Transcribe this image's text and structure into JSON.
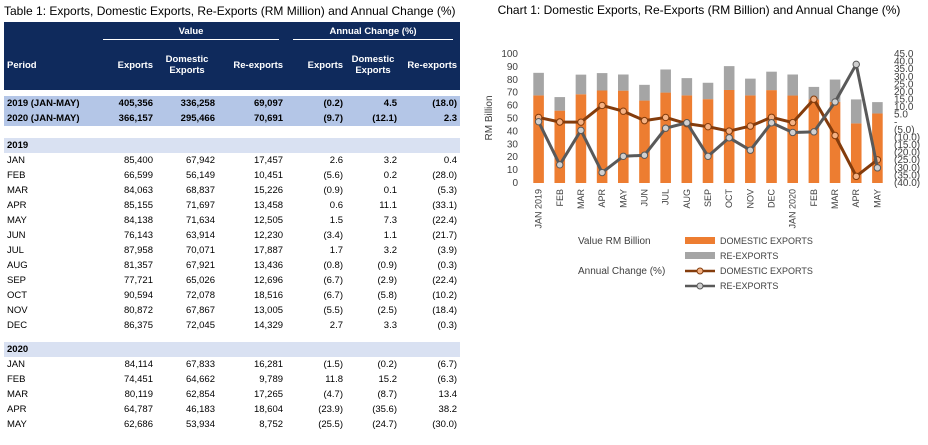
{
  "table": {
    "title": "Table 1: Exports, Domestic Exports, Re-Exports (RM Million) and Annual Change (%)",
    "header": {
      "groups": [
        "Value",
        "Annual Change (%)"
      ],
      "columns": [
        "Period",
        "Exports",
        "Domestic Exports",
        "Re-exports",
        "Exports",
        "Domestic Exports",
        "Re-exports"
      ]
    },
    "summary_rows": [
      [
        "2019 (JAN-MAY)",
        "405,356",
        "336,258",
        "69,097",
        "(0.2)",
        "4.5",
        "(18.0)"
      ],
      [
        "2020 (JAN-MAY)",
        "366,157",
        "295,466",
        "70,691",
        "(9.7)",
        "(12.1)",
        "2.3"
      ]
    ],
    "groups": [
      {
        "label": "2019",
        "rows": [
          [
            "JAN",
            "85,400",
            "67,942",
            "17,457",
            "2.6",
            "3.2",
            "0.4"
          ],
          [
            "FEB",
            "66,599",
            "56,149",
            "10,451",
            "(5.6)",
            "0.2",
            "(28.0)"
          ],
          [
            "MAR",
            "84,063",
            "68,837",
            "15,226",
            "(0.9)",
            "0.1",
            "(5.3)"
          ],
          [
            "APR",
            "85,155",
            "71,697",
            "13,458",
            "0.6",
            "11.1",
            "(33.1)"
          ],
          [
            "MAY",
            "84,138",
            "71,634",
            "12,505",
            "1.5",
            "7.3",
            "(22.4)"
          ],
          [
            "JUN",
            "76,143",
            "63,914",
            "12,230",
            "(3.4)",
            "1.1",
            "(21.7)"
          ],
          [
            "JUL",
            "87,958",
            "70,071",
            "17,887",
            "1.7",
            "3.2",
            "(3.9)"
          ],
          [
            "AUG",
            "81,357",
            "67,921",
            "13,436",
            "(0.8)",
            "(0.9)",
            "(0.3)"
          ],
          [
            "SEP",
            "77,721",
            "65,026",
            "12,696",
            "(6.7)",
            "(2.9)",
            "(22.4)"
          ],
          [
            "OCT",
            "90,594",
            "72,078",
            "18,516",
            "(6.7)",
            "(5.8)",
            "(10.2)"
          ],
          [
            "NOV",
            "80,872",
            "67,867",
            "13,005",
            "(5.5)",
            "(2.5)",
            "(18.4)"
          ],
          [
            "DEC",
            "86,375",
            "72,045",
            "14,329",
            "2.7",
            "3.3",
            "(0.3)"
          ]
        ]
      },
      {
        "label": "2020",
        "rows": [
          [
            "JAN",
            "84,114",
            "67,833",
            "16,281",
            "(1.5)",
            "(0.2)",
            "(6.7)"
          ],
          [
            "FEB",
            "74,451",
            "64,662",
            "9,789",
            "11.8",
            "15.2",
            "(6.3)"
          ],
          [
            "MAR",
            "80,119",
            "62,854",
            "17,265",
            "(4.7)",
            "(8.7)",
            "13.4"
          ],
          [
            "APR",
            "64,787",
            "46,183",
            "18,604",
            "(23.9)",
            "(35.6)",
            "38.2"
          ],
          [
            "MAY",
            "62,686",
            "53,934",
            "8,752",
            "(25.5)",
            "(24.7)",
            "(30.0)"
          ]
        ]
      }
    ]
  },
  "chart_data": {
    "type": "bar",
    "title": "Chart 1: Domestic Exports, Re-Exports (RM Billion) and Annual Change (%)",
    "ylabel": "RM Billion",
    "categories": [
      "JAN 2019",
      "FEB",
      "MAR",
      "APR",
      "MAY",
      "JUN",
      "JUL",
      "AUG",
      "SEP",
      "OCT",
      "NOV",
      "DEC",
      "JAN 2020",
      "FEB",
      "MAR",
      "APR",
      "MAY"
    ],
    "stacked": true,
    "legend_groups": [
      {
        "label": "Value RM  Billion",
        "kind": "bar"
      },
      {
        "label": "Annual Change (%)",
        "kind": "line"
      }
    ],
    "series": [
      {
        "name": "DOMESTIC EXPORTS",
        "kind": "bar",
        "color": "#ed7d31",
        "values": [
          67.9,
          56.1,
          68.8,
          71.7,
          71.6,
          63.9,
          70.1,
          67.9,
          65.0,
          72.1,
          67.9,
          72.0,
          67.8,
          64.7,
          62.9,
          46.2,
          53.9
        ]
      },
      {
        "name": "RE-EXPORTS",
        "kind": "bar",
        "color": "#a5a5a5",
        "values": [
          17.5,
          10.5,
          15.2,
          13.5,
          12.5,
          12.2,
          17.9,
          13.4,
          12.7,
          18.5,
          13.0,
          14.3,
          16.3,
          9.8,
          17.3,
          18.6,
          8.8
        ]
      },
      {
        "name": "DOMESTIC EXPORTS",
        "kind": "line",
        "axis": "y2",
        "color": "#843c0c",
        "marker_color": "#f4b183",
        "values": [
          3.2,
          0.2,
          0.1,
          11.1,
          7.3,
          1.1,
          3.2,
          -0.9,
          -2.9,
          -5.8,
          -2.5,
          3.3,
          -0.2,
          15.2,
          -8.7,
          -35.6,
          -24.7
        ]
      },
      {
        "name": "RE-EXPORTS",
        "kind": "line",
        "axis": "y2",
        "color": "#595959",
        "marker_color": "#d0d0d0",
        "values": [
          0.4,
          -28.0,
          -5.3,
          -33.1,
          -22.4,
          -21.7,
          -3.9,
          -0.3,
          -22.4,
          -10.2,
          -18.4,
          -0.3,
          -6.7,
          -6.3,
          13.4,
          38.2,
          -30.0
        ]
      }
    ],
    "ylim": [
      0,
      100
    ],
    "yticks": [
      0,
      10,
      20,
      30,
      40,
      50,
      60,
      70,
      80,
      90,
      100
    ],
    "y2lim": [
      -40,
      45
    ],
    "y2ticks": [
      {
        "value": -40,
        "label": "(40.0)"
      },
      {
        "value": -35,
        "label": "(35.0)"
      },
      {
        "value": -30,
        "label": "(30.0)"
      },
      {
        "value": -25,
        "label": "(25.0)"
      },
      {
        "value": -20,
        "label": "(20.0)"
      },
      {
        "value": -15,
        "label": "(15.0)"
      },
      {
        "value": -10,
        "label": "(10.0)"
      },
      {
        "value": -5,
        "label": "(5.0)"
      },
      {
        "value": 0,
        "label": "-"
      },
      {
        "value": 5,
        "label": "5.0"
      },
      {
        "value": 10,
        "label": "10.0"
      },
      {
        "value": 15,
        "label": "15.0"
      },
      {
        "value": 20,
        "label": "20.0"
      },
      {
        "value": 25,
        "label": "25.0"
      },
      {
        "value": 30,
        "label": "30.0"
      },
      {
        "value": 35,
        "label": "35.0"
      },
      {
        "value": 40,
        "label": "40.0"
      },
      {
        "value": 45,
        "label": "45.0"
      }
    ],
    "grid": false
  }
}
